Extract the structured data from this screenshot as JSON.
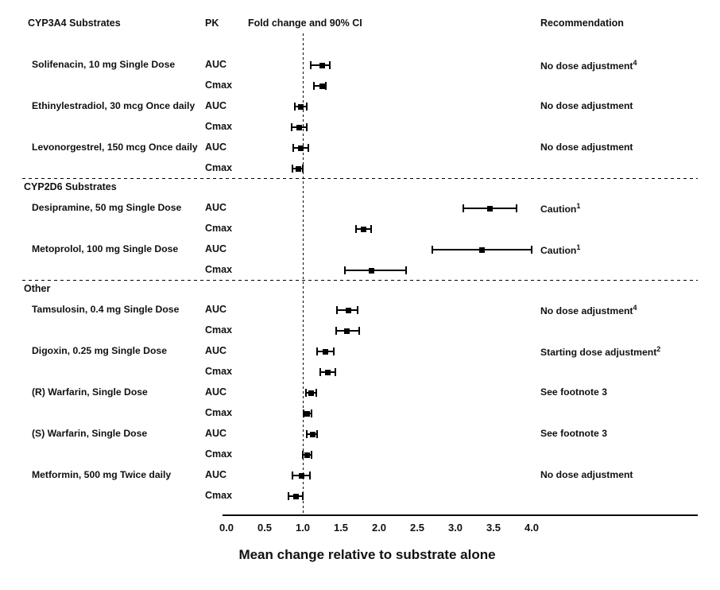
{
  "header": {
    "col_substrates": "CYP3A4 Substrates",
    "col_pk": "PK",
    "col_plot": "Fold change and 90% CI",
    "col_recommendation": "Recommendation"
  },
  "axis": {
    "ticks": [
      "0.0",
      "0.5",
      "1.0",
      "1.5",
      "2.0",
      "2.5",
      "3.0",
      "3.5",
      "4.0"
    ],
    "tick_values": [
      0,
      0.5,
      1,
      1.5,
      2,
      2.5,
      3,
      3.5,
      4
    ]
  },
  "chart_data": {
    "type": "scatter",
    "subtype": "forest-plot-errorbar",
    "title": "Fold change and 90% CI",
    "xlabel": "Mean change relative to substrate alone",
    "reference_line": 1.0,
    "xlim": [
      0,
      4.4
    ],
    "grid": false,
    "legend": "none",
    "sections": [
      {
        "label": "CYP3A4 Substrates",
        "label_in_header": true,
        "drugs": [
          {
            "name": "Solifenacin, 10 mg Single Dose",
            "recommendation": "No dose adjustment",
            "rec_sup": "4",
            "measures": [
              {
                "pk": "AUC",
                "value": 1.25,
                "lo": 1.1,
                "hi": 1.35
              },
              {
                "pk": "Cmax",
                "value": 1.25,
                "lo": 1.15,
                "hi": 1.3
              }
            ]
          },
          {
            "name": "Ethinylestradiol, 30 mcg Once daily",
            "recommendation": "No dose adjustment",
            "rec_sup": "",
            "measures": [
              {
                "pk": "AUC",
                "value": 0.97,
                "lo": 0.9,
                "hi": 1.05
              },
              {
                "pk": "Cmax",
                "value": 0.95,
                "lo": 0.85,
                "hi": 1.05
              }
            ]
          },
          {
            "name": "Levonorgestrel, 150 mcg Once daily",
            "recommendation": "No dose adjustment",
            "rec_sup": "",
            "measures": [
              {
                "pk": "AUC",
                "value": 0.97,
                "lo": 0.88,
                "hi": 1.07
              },
              {
                "pk": "Cmax",
                "value": 0.94,
                "lo": 0.86,
                "hi": 1.0
              }
            ]
          }
        ]
      },
      {
        "label": "CYP2D6 Substrates",
        "label_in_header": false,
        "drugs": [
          {
            "name": "Desipramine, 50 mg Single Dose",
            "recommendation": "Caution",
            "rec_sup": "1",
            "measures": [
              {
                "pk": "AUC",
                "value": 3.45,
                "lo": 3.1,
                "hi": 3.8
              },
              {
                "pk": "Cmax",
                "value": 1.8,
                "lo": 1.7,
                "hi": 1.9
              }
            ]
          },
          {
            "name": "Metoprolol, 100 mg Single Dose",
            "recommendation": "Caution",
            "rec_sup": "1",
            "measures": [
              {
                "pk": "AUC",
                "value": 3.35,
                "lo": 2.7,
                "hi": 4.0
              },
              {
                "pk": "Cmax",
                "value": 1.9,
                "lo": 1.55,
                "hi": 2.35
              }
            ]
          }
        ]
      },
      {
        "label": "Other",
        "label_in_header": false,
        "drugs": [
          {
            "name": "Tamsulosin, 0.4 mg Single Dose",
            "recommendation": "No dose adjustment",
            "rec_sup": "4",
            "measures": [
              {
                "pk": "AUC",
                "value": 1.6,
                "lo": 1.45,
                "hi": 1.72
              },
              {
                "pk": "Cmax",
                "value": 1.58,
                "lo": 1.44,
                "hi": 1.74
              }
            ]
          },
          {
            "name": "Digoxin, 0.25 mg Single Dose",
            "recommendation": "Starting dose adjustment",
            "rec_sup": "2",
            "measures": [
              {
                "pk": "AUC",
                "value": 1.3,
                "lo": 1.19,
                "hi": 1.41
              },
              {
                "pk": "Cmax",
                "value": 1.33,
                "lo": 1.23,
                "hi": 1.43
              }
            ]
          },
          {
            "name": "(R) Warfarin, Single Dose",
            "recommendation": "See footnote 3",
            "rec_sup": "",
            "measures": [
              {
                "pk": "AUC",
                "value": 1.11,
                "lo": 1.04,
                "hi": 1.18
              },
              {
                "pk": "Cmax",
                "value": 1.06,
                "lo": 1.01,
                "hi": 1.11
              }
            ]
          },
          {
            "name": "(S) Warfarin, Single Dose",
            "recommendation": "See footnote 3",
            "rec_sup": "",
            "measures": [
              {
                "pk": "AUC",
                "value": 1.13,
                "lo": 1.05,
                "hi": 1.19
              },
              {
                "pk": "Cmax",
                "value": 1.06,
                "lo": 1.0,
                "hi": 1.11
              }
            ]
          },
          {
            "name": "Metformin, 500 mg Twice daily",
            "recommendation": "No dose adjustment",
            "rec_sup": "",
            "measures": [
              {
                "pk": "AUC",
                "value": 0.98,
                "lo": 0.86,
                "hi": 1.09
              },
              {
                "pk": "Cmax",
                "value": 0.91,
                "lo": 0.81,
                "hi": 1.0
              }
            ]
          }
        ]
      }
    ]
  }
}
